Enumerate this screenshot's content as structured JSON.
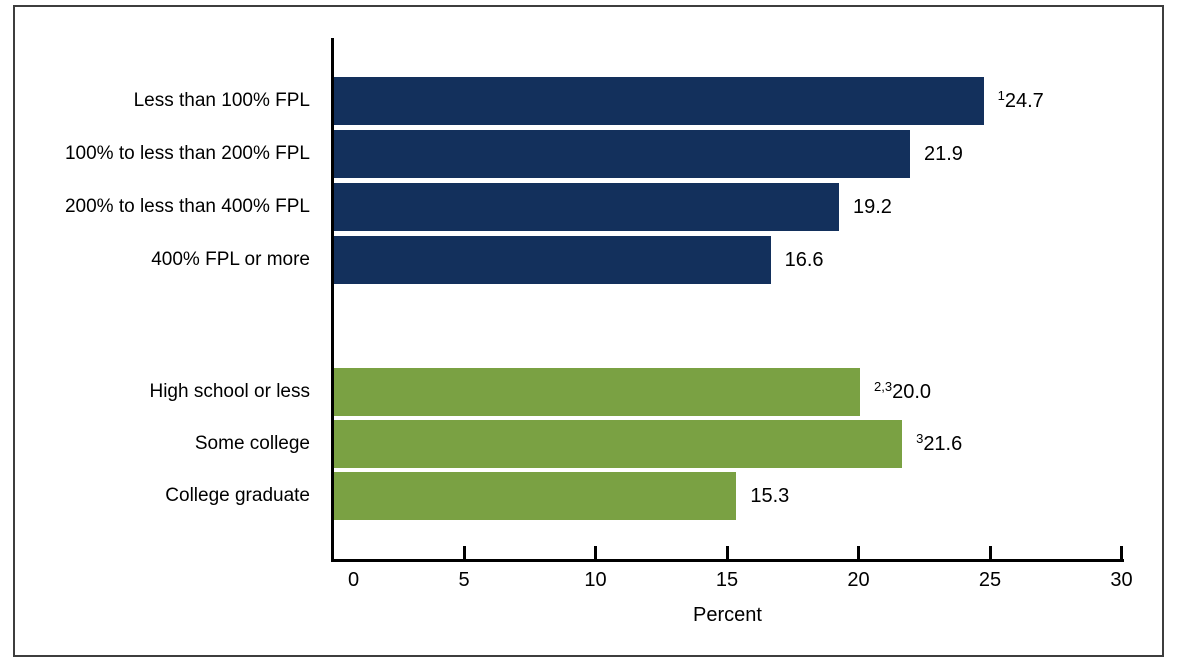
{
  "chart_data": {
    "type": "bar",
    "orientation": "horizontal",
    "title": "",
    "xlabel": "Percent",
    "ylabel": "",
    "xlim": [
      0,
      30
    ],
    "xticks": [
      "0",
      "5",
      "10",
      "15",
      "20",
      "25",
      "30"
    ],
    "grid": false,
    "legend": "none",
    "groups": [
      {
        "name": "family-income",
        "color": "#13305c",
        "bars": [
          {
            "category": "Less than 100% FPL",
            "value": 24.7,
            "value_label": "24.7",
            "sup": "1"
          },
          {
            "category": "100% to less than 200% FPL",
            "value": 21.9,
            "value_label": "21.9",
            "sup": ""
          },
          {
            "category": "200% to less than 400% FPL",
            "value": 19.2,
            "value_label": "19.2",
            "sup": ""
          },
          {
            "category": "400% FPL or more",
            "value": 16.6,
            "value_label": "16.6",
            "sup": ""
          }
        ]
      },
      {
        "name": "education",
        "color": "#7aa143",
        "bars": [
          {
            "category": "High school or less",
            "value": 20.0,
            "value_label": "20.0",
            "sup": "2,3"
          },
          {
            "category": "Some college",
            "value": 21.6,
            "value_label": "21.6",
            "sup": "3"
          },
          {
            "category": "College graduate",
            "value": 15.3,
            "value_label": "15.3",
            "sup": ""
          }
        ]
      }
    ]
  }
}
